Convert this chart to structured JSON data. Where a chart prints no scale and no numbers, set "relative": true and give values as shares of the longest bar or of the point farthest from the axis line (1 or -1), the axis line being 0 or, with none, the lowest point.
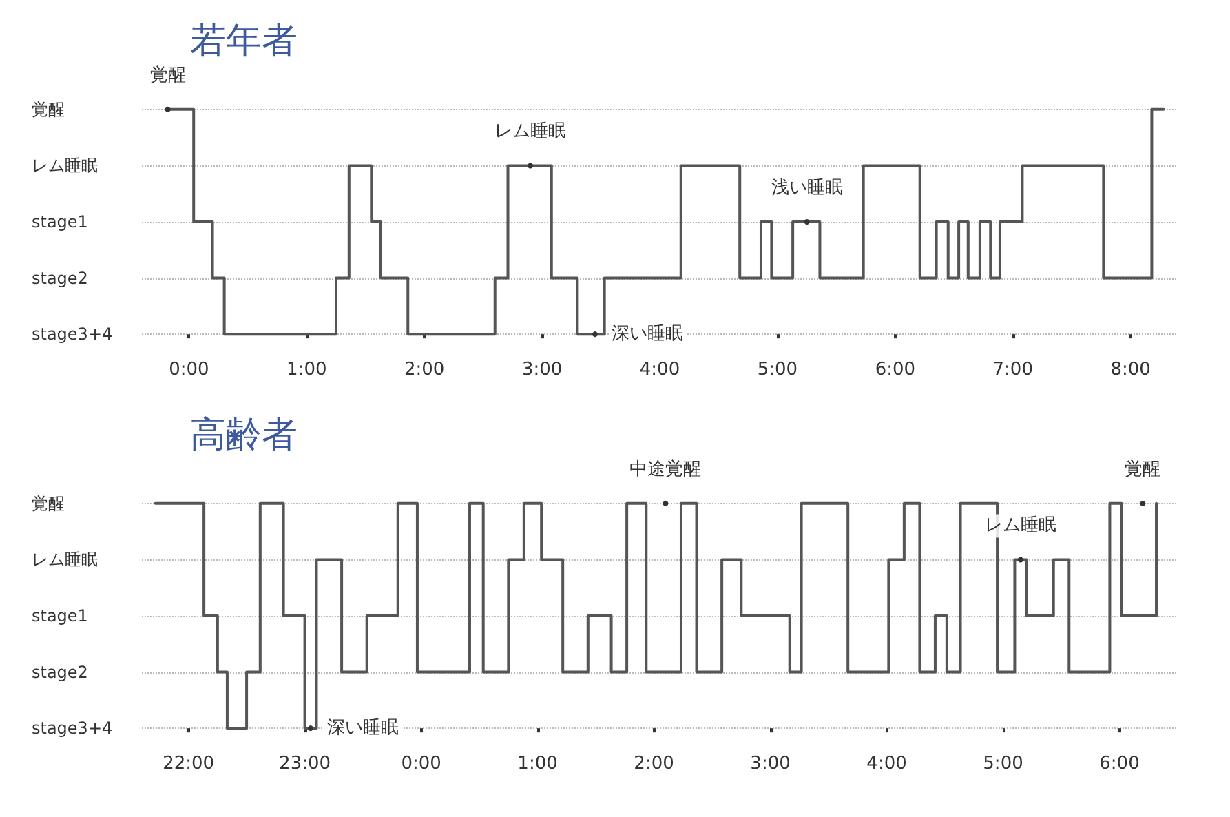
{
  "chart_data": [
    {
      "type": "step",
      "title": "若年者",
      "grid": "y",
      "marker": "none",
      "line_style": "solid",
      "relative": true,
      "y_categories": [
        "覚醒",
        "レム睡眠",
        "stage1",
        "stage2",
        "stage3+4"
      ],
      "xlim": [
        -0.4,
        8.4
      ],
      "xticks": [
        {
          "value": 0,
          "label": "0:00"
        },
        {
          "value": 1,
          "label": "1:00"
        },
        {
          "value": 2,
          "label": "2:00"
        },
        {
          "value": 3,
          "label": "3:00"
        },
        {
          "value": 4,
          "label": "4:00"
        },
        {
          "value": 5,
          "label": "5:00"
        },
        {
          "value": 6,
          "label": "6:00"
        },
        {
          "value": 7,
          "label": "7:00"
        },
        {
          "value": 8,
          "label": "8:00"
        }
      ],
      "series": [
        {
          "color": "#555555",
          "x": [
            -0.18,
            0.04,
            0.2,
            0.3,
            1.25,
            1.36,
            1.55,
            1.63,
            1.86,
            2.6,
            2.71,
            3.08,
            3.3,
            3.53,
            4.18,
            4.68,
            4.86,
            4.95,
            5.13,
            5.36,
            5.73,
            6.21,
            6.35,
            6.45,
            6.54,
            6.62,
            6.72,
            6.81,
            6.89,
            7.08,
            7.77,
            8.18,
            8.28
          ],
          "values": [
            1,
            0.5,
            0.25,
            0,
            0.25,
            0.75,
            0.5,
            0.25,
            0,
            0.25,
            0.75,
            0.25,
            0,
            0.25,
            0.75,
            0.25,
            0.5,
            0.25,
            0.5,
            0.25,
            0.75,
            0.25,
            0.5,
            0.25,
            0.5,
            0.25,
            0.5,
            0.25,
            0.5,
            0.75,
            0.25,
            1,
            1
          ]
        }
      ],
      "annotations": [
        {
          "text": "覚醒",
          "x": -0.18,
          "y": 1
        },
        {
          "text": "レム睡眠",
          "x": 2.9,
          "y": 0.75
        },
        {
          "text": "浅い睡眠",
          "x": 5.25,
          "y": 0.5
        },
        {
          "text": "深い睡眠",
          "x": 3.45,
          "y": 0
        }
      ]
    },
    {
      "type": "step",
      "title": "高齢者",
      "grid": "y",
      "marker": "none",
      "line_style": "solid",
      "relative": true,
      "y_categories": [
        "覚醒",
        "レム睡眠",
        "stage1",
        "stage2",
        "stage3+4"
      ],
      "xlim": [
        "2000-01-01T21:36",
        "2000-01-02T06:30"
      ],
      "xticks": [
        {
          "value": "2000-01-01T22:00",
          "label": "22:00"
        },
        {
          "value": "2000-01-01T23:00",
          "label": "23:00"
        },
        {
          "value": "2000-01-02T00:00",
          "label": "0:00"
        },
        {
          "value": "2000-01-02T01:00",
          "label": "1:00"
        },
        {
          "value": "2000-01-02T02:00",
          "label": "2:00"
        },
        {
          "value": "2000-01-02T03:00",
          "label": "3:00"
        },
        {
          "value": "2000-01-02T04:00",
          "label": "4:00"
        },
        {
          "value": "2000-01-02T05:00",
          "label": "5:00"
        },
        {
          "value": "2000-01-02T06:00",
          "label": "6:00"
        }
      ],
      "series": [
        {
          "color": "#555555",
          "x": [
            "2000-01-01T21:43",
            "2000-01-01T22:08",
            "2000-01-01T22:15",
            "2000-01-01T22:20",
            "2000-01-01T22:30",
            "2000-01-01T22:37",
            "2000-01-01T22:49",
            "2000-01-01T23:00",
            "2000-01-01T23:06",
            "2000-01-01T23:19",
            "2000-01-01T23:32",
            "2000-01-01T23:48",
            "2000-01-01T23:58",
            "2000-01-02T00:25",
            "2000-01-02T00:32",
            "2000-01-02T00:45",
            "2000-01-02T00:53",
            "2000-01-02T01:02",
            "2000-01-02T01:13",
            "2000-01-02T01:26",
            "2000-01-02T01:38",
            "2000-01-02T01:46",
            "2000-01-02T01:56",
            "2000-01-02T02:14",
            "2000-01-02T02:22",
            "2000-01-02T02:35",
            "2000-01-02T02:45",
            "2000-01-02T03:10",
            "2000-01-02T03:16",
            "2000-01-02T03:40",
            "2000-01-02T04:01",
            "2000-01-02T04:09",
            "2000-01-02T04:17",
            "2000-01-02T04:25",
            "2000-01-02T04:31",
            "2000-01-02T04:38",
            "2000-01-02T04:57",
            "2000-01-02T05:06",
            "2000-01-02T05:12",
            "2000-01-02T05:26",
            "2000-01-02T05:34",
            "2000-01-02T05:55",
            "2000-01-02T06:01",
            "2000-01-02T06:19"
          ],
          "values": [
            1,
            0.5,
            0.25,
            0,
            0.25,
            1,
            0.5,
            0,
            0.75,
            0.25,
            0.5,
            1,
            0.25,
            1,
            0.25,
            0.75,
            1,
            0.75,
            0.25,
            0.5,
            0.25,
            1,
            0.25,
            1,
            0.25,
            0.75,
            0.5,
            0.25,
            1,
            0.25,
            0.75,
            1,
            0.25,
            0.5,
            0.25,
            1,
            0.25,
            0.75,
            0.5,
            0.75,
            0.25,
            1,
            0.5,
            1
          ]
        }
      ],
      "annotations": [
        {
          "text": "深い睡眠",
          "x": "2000-01-01T23:03",
          "y": 0
        },
        {
          "text": "中途覚醒",
          "x": "2000-01-02T02:06",
          "y": 1
        },
        {
          "text": "レム睡眠",
          "x": "2000-01-02T05:09",
          "y": 0.75
        },
        {
          "text": "覚醒",
          "x": "2000-01-02T06:12",
          "y": 1
        }
      ]
    }
  ]
}
